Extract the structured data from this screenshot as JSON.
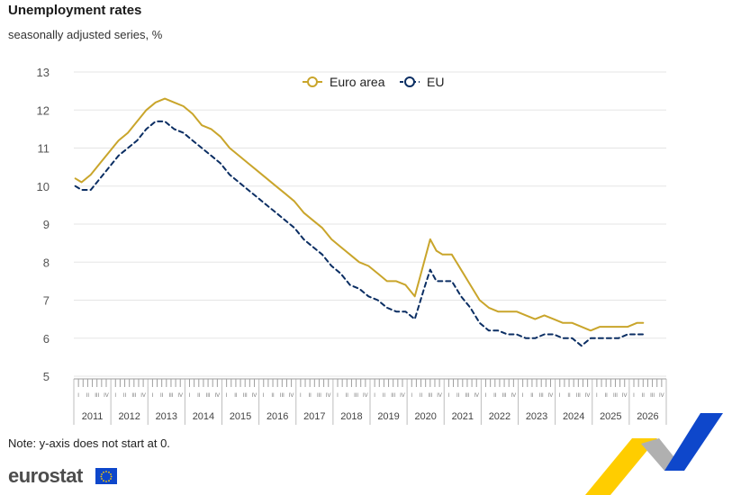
{
  "header": {
    "title": "Unemployment rates",
    "subtitle": "seasonally adjusted series, %"
  },
  "footer": {
    "note": "Note: y-axis does not start at 0.",
    "logo_text": "eurostat"
  },
  "colors": {
    "euro_area": "#c9a52b",
    "eu": "#0b2e63",
    "grid": "#e5e5e5",
    "axis_text": "#555555",
    "brand_blue": "#0e47cb",
    "brand_yellow": "#ffcd00"
  },
  "chart_data": {
    "type": "line",
    "x_axis": {
      "years": [
        "2011",
        "2012",
        "2013",
        "2014",
        "2015",
        "2016",
        "2017",
        "2018",
        "2019",
        "2020",
        "2021",
        "2022",
        "2023",
        "2024",
        "2025",
        "2026"
      ],
      "quarters": [
        "I",
        "II",
        "III",
        "IV"
      ]
    },
    "ylim": [
      5,
      13
    ],
    "yticks": [
      5,
      6,
      7,
      8,
      9,
      10,
      11,
      12,
      13
    ],
    "grid": true,
    "legend_position": "top-center",
    "series": [
      {
        "name": "Euro area",
        "color": "#c9a52b",
        "dash": "solid",
        "points": [
          [
            "2011-01",
            10.2
          ],
          [
            "2011-03",
            10.1
          ],
          [
            "2011-06",
            10.3
          ],
          [
            "2011-09",
            10.6
          ],
          [
            "2011-12",
            10.9
          ],
          [
            "2012-03",
            11.2
          ],
          [
            "2012-06",
            11.4
          ],
          [
            "2012-09",
            11.7
          ],
          [
            "2012-12",
            12.0
          ],
          [
            "2013-03",
            12.2
          ],
          [
            "2013-06",
            12.3
          ],
          [
            "2013-09",
            12.2
          ],
          [
            "2013-12",
            12.1
          ],
          [
            "2014-03",
            11.9
          ],
          [
            "2014-06",
            11.6
          ],
          [
            "2014-09",
            11.5
          ],
          [
            "2014-12",
            11.3
          ],
          [
            "2015-03",
            11.0
          ],
          [
            "2015-06",
            10.8
          ],
          [
            "2015-09",
            10.6
          ],
          [
            "2015-12",
            10.4
          ],
          [
            "2016-03",
            10.2
          ],
          [
            "2016-06",
            10.0
          ],
          [
            "2016-09",
            9.8
          ],
          [
            "2016-12",
            9.6
          ],
          [
            "2017-03",
            9.3
          ],
          [
            "2017-06",
            9.1
          ],
          [
            "2017-09",
            8.9
          ],
          [
            "2017-12",
            8.6
          ],
          [
            "2018-03",
            8.4
          ],
          [
            "2018-06",
            8.2
          ],
          [
            "2018-09",
            8.0
          ],
          [
            "2018-12",
            7.9
          ],
          [
            "2019-03",
            7.7
          ],
          [
            "2019-06",
            7.5
          ],
          [
            "2019-09",
            7.5
          ],
          [
            "2019-12",
            7.4
          ],
          [
            "2020-03",
            7.1
          ],
          [
            "2020-06",
            8.0
          ],
          [
            "2020-08",
            8.6
          ],
          [
            "2020-10",
            8.3
          ],
          [
            "2020-12",
            8.2
          ],
          [
            "2021-03",
            8.2
          ],
          [
            "2021-06",
            7.8
          ],
          [
            "2021-09",
            7.4
          ],
          [
            "2021-12",
            7.0
          ],
          [
            "2022-03",
            6.8
          ],
          [
            "2022-06",
            6.7
          ],
          [
            "2022-09",
            6.7
          ],
          [
            "2022-12",
            6.7
          ],
          [
            "2023-03",
            6.6
          ],
          [
            "2023-06",
            6.5
          ],
          [
            "2023-09",
            6.6
          ],
          [
            "2023-12",
            6.5
          ],
          [
            "2024-03",
            6.4
          ],
          [
            "2024-06",
            6.4
          ],
          [
            "2024-09",
            6.3
          ],
          [
            "2024-12",
            6.2
          ],
          [
            "2025-03",
            6.3
          ],
          [
            "2025-06",
            6.3
          ],
          [
            "2025-09",
            6.3
          ],
          [
            "2025-12",
            6.3
          ],
          [
            "2026-03",
            6.4
          ],
          [
            "2026-05",
            6.4
          ]
        ]
      },
      {
        "name": "EU",
        "color": "#0b2e63",
        "dash": "dashed",
        "points": [
          [
            "2011-01",
            10.0
          ],
          [
            "2011-03",
            9.9
          ],
          [
            "2011-06",
            9.9
          ],
          [
            "2011-09",
            10.2
          ],
          [
            "2011-12",
            10.5
          ],
          [
            "2012-03",
            10.8
          ],
          [
            "2012-06",
            11.0
          ],
          [
            "2012-09",
            11.2
          ],
          [
            "2012-12",
            11.5
          ],
          [
            "2013-03",
            11.7
          ],
          [
            "2013-06",
            11.7
          ],
          [
            "2013-09",
            11.5
          ],
          [
            "2013-12",
            11.4
          ],
          [
            "2014-03",
            11.2
          ],
          [
            "2014-06",
            11.0
          ],
          [
            "2014-09",
            10.8
          ],
          [
            "2014-12",
            10.6
          ],
          [
            "2015-03",
            10.3
          ],
          [
            "2015-06",
            10.1
          ],
          [
            "2015-09",
            9.9
          ],
          [
            "2015-12",
            9.7
          ],
          [
            "2016-03",
            9.5
          ],
          [
            "2016-06",
            9.3
          ],
          [
            "2016-09",
            9.1
          ],
          [
            "2016-12",
            8.9
          ],
          [
            "2017-03",
            8.6
          ],
          [
            "2017-06",
            8.4
          ],
          [
            "2017-09",
            8.2
          ],
          [
            "2017-12",
            7.9
          ],
          [
            "2018-03",
            7.7
          ],
          [
            "2018-06",
            7.4
          ],
          [
            "2018-09",
            7.3
          ],
          [
            "2018-12",
            7.1
          ],
          [
            "2019-03",
            7.0
          ],
          [
            "2019-06",
            6.8
          ],
          [
            "2019-09",
            6.7
          ],
          [
            "2019-12",
            6.7
          ],
          [
            "2020-03",
            6.5
          ],
          [
            "2020-06",
            7.3
          ],
          [
            "2020-08",
            7.8
          ],
          [
            "2020-10",
            7.5
          ],
          [
            "2020-12",
            7.5
          ],
          [
            "2021-03",
            7.5
          ],
          [
            "2021-06",
            7.1
          ],
          [
            "2021-09",
            6.8
          ],
          [
            "2021-12",
            6.4
          ],
          [
            "2022-03",
            6.2
          ],
          [
            "2022-06",
            6.2
          ],
          [
            "2022-09",
            6.1
          ],
          [
            "2022-12",
            6.1
          ],
          [
            "2023-03",
            6.0
          ],
          [
            "2023-06",
            6.0
          ],
          [
            "2023-09",
            6.1
          ],
          [
            "2023-12",
            6.1
          ],
          [
            "2024-03",
            6.0
          ],
          [
            "2024-06",
            6.0
          ],
          [
            "2024-09",
            5.8
          ],
          [
            "2024-12",
            6.0
          ],
          [
            "2025-03",
            6.0
          ],
          [
            "2025-06",
            6.0
          ],
          [
            "2025-09",
            6.0
          ],
          [
            "2025-12",
            6.1
          ],
          [
            "2026-03",
            6.1
          ],
          [
            "2026-05",
            6.1
          ]
        ]
      }
    ]
  }
}
